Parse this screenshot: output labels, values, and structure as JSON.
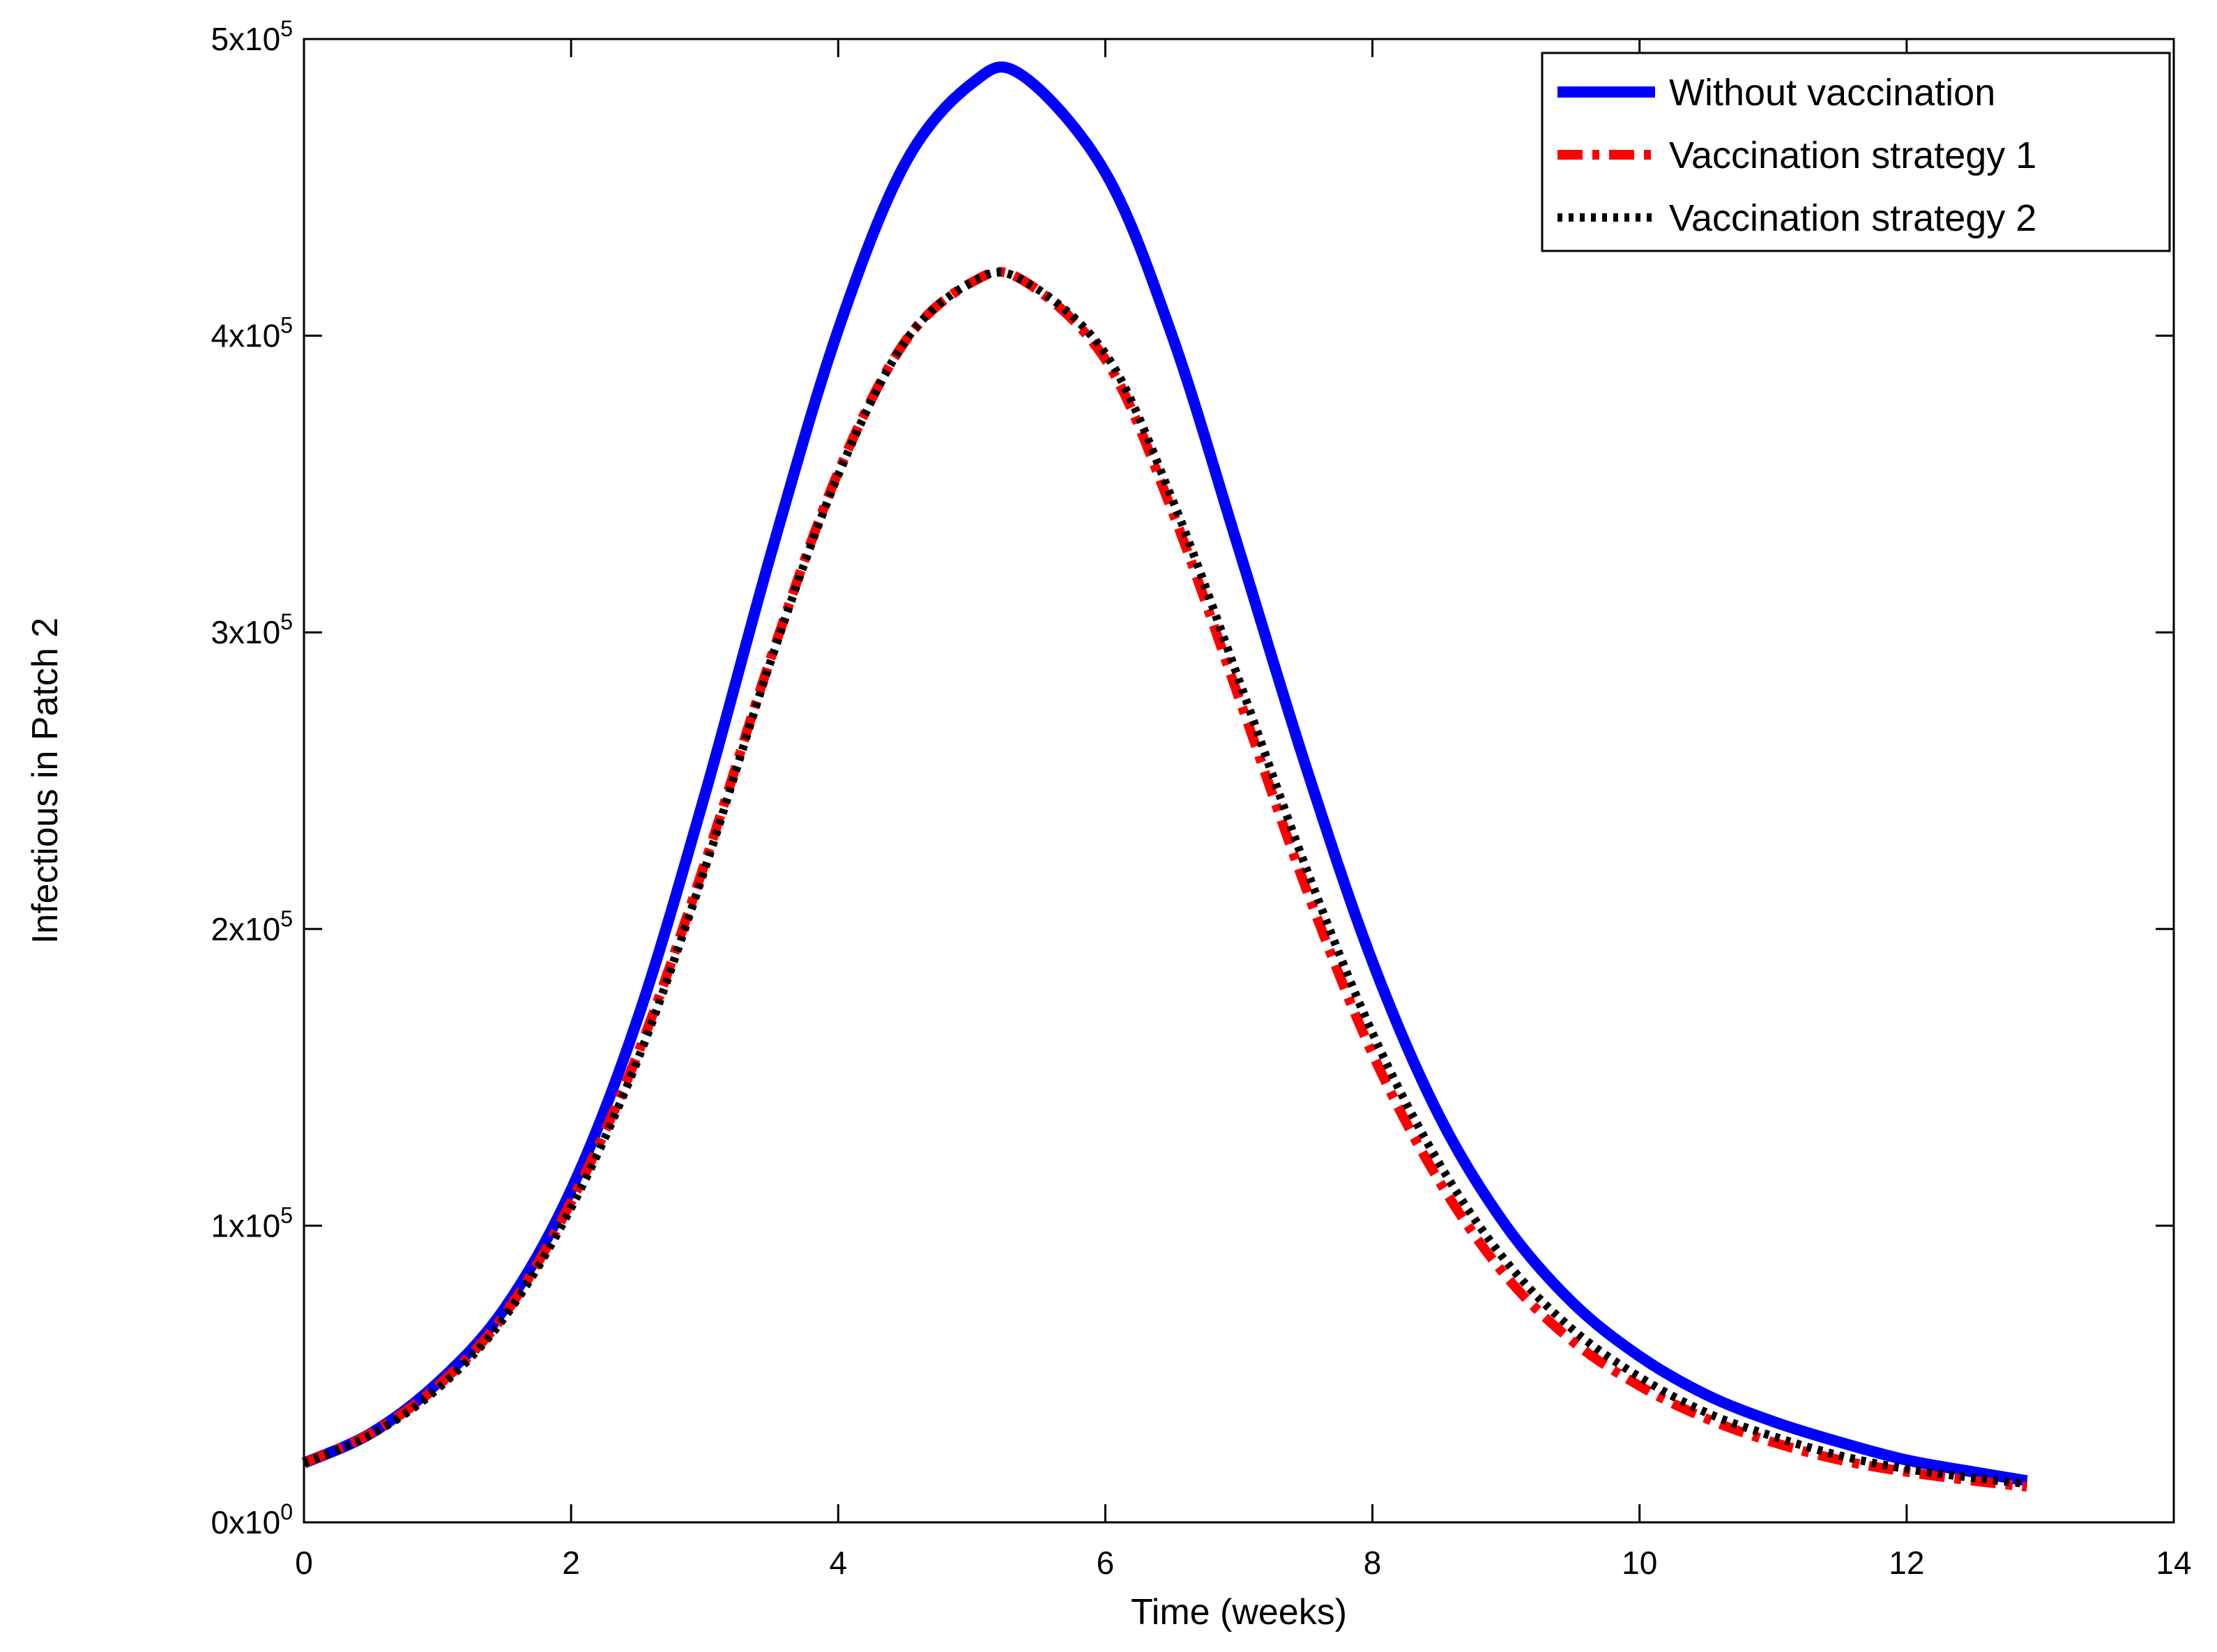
{
  "chart_data": {
    "type": "line",
    "title": "",
    "xlabel": "Time (weeks)",
    "ylabel": "Infectious in Patch 2",
    "xlim": [
      0,
      14
    ],
    "ylim": [
      0,
      500000
    ],
    "x_ticks": [
      0,
      2,
      4,
      6,
      8,
      10,
      12,
      14
    ],
    "x_tick_labels": [
      "0",
      "2",
      "4",
      "6",
      "8",
      "10",
      "12",
      "14"
    ],
    "y_ticks": [
      0,
      100000,
      200000,
      300000,
      400000,
      500000
    ],
    "y_tick_labels": [
      {
        "mantissa": "0x10",
        "exp": "0"
      },
      {
        "mantissa": "1x10",
        "exp": "5"
      },
      {
        "mantissa": "2x10",
        "exp": "5"
      },
      {
        "mantissa": "3x10",
        "exp": "5"
      },
      {
        "mantissa": "4x10",
        "exp": "5"
      },
      {
        "mantissa": "5x10",
        "exp": "5"
      }
    ],
    "grid": false,
    "legend_position": "top-right",
    "x": [
      0,
      0.5,
      1,
      1.5,
      2,
      2.5,
      3,
      3.5,
      4,
      4.5,
      5,
      5.37,
      6,
      6.5,
      7,
      7.5,
      8,
      8.5,
      9,
      9.5,
      10,
      10.5,
      11,
      11.5,
      12,
      12.5,
      12.9
    ],
    "series": [
      {
        "name": "Without vaccination",
        "color": "#0000ff",
        "style": "solid",
        "values": [
          20000,
          30000,
          47000,
          72000,
          112000,
          170000,
          245000,
          327000,
          402000,
          458000,
          485000,
          488000,
          455000,
          400000,
          328000,
          255000,
          189000,
          137000,
          100000,
          74000,
          56000,
          43000,
          34000,
          27000,
          21000,
          17000,
          14000
        ]
      },
      {
        "name": "Vaccination strategy 1",
        "color": "#ff0000",
        "style": "dashdot",
        "values": [
          20000,
          30000,
          46000,
          70000,
          108000,
          158000,
          222000,
          292000,
          354000,
          398000,
          418000,
          419000,
          392000,
          341000,
          278000,
          214000,
          158000,
          115000,
          83000,
          61000,
          46000,
          35000,
          27000,
          21000,
          17000,
          14000,
          12000
        ]
      },
      {
        "name": "Vaccination strategy 2",
        "color": "#000000",
        "style": "dotted",
        "values": [
          20000,
          29500,
          45000,
          69000,
          106000,
          156000,
          220000,
          291000,
          353000,
          398000,
          418000,
          419000,
          394000,
          345000,
          284000,
          221000,
          165000,
          121000,
          88000,
          65000,
          49000,
          37000,
          29000,
          22500,
          18000,
          15000,
          13000
        ]
      }
    ]
  }
}
